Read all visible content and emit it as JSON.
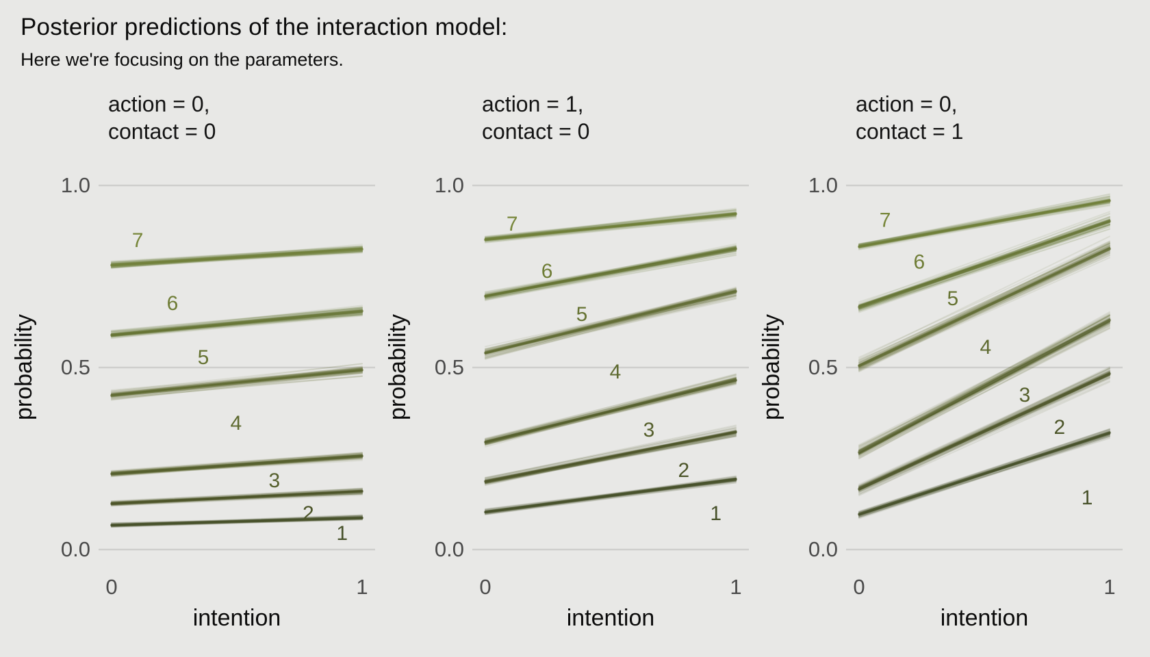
{
  "page": {
    "title": "Posterior predictions of the interaction model:",
    "subtitle": "Here we're focusing on the parameters."
  },
  "chart_data": {
    "type": "line",
    "style": "posterior spaghetti of cumulative probabilities (50 draws per line)",
    "xlabel": "intention",
    "ylabel": "probability",
    "xlim": [
      0,
      1
    ],
    "ylim": [
      0,
      1
    ],
    "xticks": [
      {
        "value": 0,
        "label": "0"
      },
      {
        "value": 1,
        "label": "1"
      }
    ],
    "yticks": [
      {
        "value": 0.0,
        "label": "0.0"
      },
      {
        "value": 0.5,
        "label": "0.5"
      },
      {
        "value": 1.0,
        "label": "1.0"
      }
    ],
    "grid": "horizontal major gridlines only",
    "legend": "none (lines annotated 1-7 in panel)",
    "colors": {
      "background": "#e8e8e6",
      "gridline": "#cfcfcd",
      "tick_text": "#4a4a4a",
      "text": "#0c0c0c",
      "level_ramp": [
        "#47512a",
        "#4c5529",
        "#555f2c",
        "#5e6a30",
        "#667333",
        "#6f7d36",
        "#78873b"
      ]
    },
    "facets": [
      {
        "strip": [
          "action = 0,",
          "contact = 0"
        ],
        "series": [
          {
            "name": "cumulative-line-1",
            "level": 1,
            "x": [
              0,
              1
            ],
            "y": [
              0.067,
              0.087
            ],
            "spread": 0.004
          },
          {
            "name": "cumulative-line-2",
            "level": 2,
            "x": [
              0,
              1
            ],
            "y": [
              0.126,
              0.16
            ],
            "spread": 0.005
          },
          {
            "name": "cumulative-line-3",
            "level": 3,
            "x": [
              0,
              1
            ],
            "y": [
              0.208,
              0.257
            ],
            "spread": 0.006
          },
          {
            "name": "cumulative-line-4",
            "level": 4,
            "x": [
              0,
              1
            ],
            "y": [
              0.423,
              0.493
            ],
            "spread": 0.009
          },
          {
            "name": "cumulative-line-5",
            "level": 5,
            "x": [
              0,
              1
            ],
            "y": [
              0.589,
              0.655
            ],
            "spread": 0.009
          },
          {
            "name": "cumulative-line-6",
            "level": 6,
            "x": [
              0,
              1
            ],
            "y": [
              0.781,
              0.825
            ],
            "spread": 0.008
          }
        ],
        "level_labels": [
          {
            "text": "1",
            "x": 0.92,
            "y": 0.045
          },
          {
            "text": "2",
            "x": 0.785,
            "y": 0.1
          },
          {
            "text": "3",
            "x": 0.65,
            "y": 0.19
          },
          {
            "text": "4",
            "x": 0.497,
            "y": 0.348
          },
          {
            "text": "5",
            "x": 0.366,
            "y": 0.528
          },
          {
            "text": "6",
            "x": 0.243,
            "y": 0.677
          },
          {
            "text": "7",
            "x": 0.104,
            "y": 0.85
          }
        ]
      },
      {
        "strip": [
          "action = 1,",
          "contact = 0"
        ],
        "series": [
          {
            "name": "cumulative-line-1",
            "level": 1,
            "x": [
              0,
              1
            ],
            "y": [
              0.103,
              0.193
            ],
            "spread": 0.005
          },
          {
            "name": "cumulative-line-2",
            "level": 2,
            "x": [
              0,
              1
            ],
            "y": [
              0.187,
              0.323
            ],
            "spread": 0.007
          },
          {
            "name": "cumulative-line-3",
            "level": 3,
            "x": [
              0,
              1
            ],
            "y": [
              0.295,
              0.465
            ],
            "spread": 0.009
          },
          {
            "name": "cumulative-line-4",
            "level": 4,
            "x": [
              0,
              1
            ],
            "y": [
              0.54,
              0.709
            ],
            "spread": 0.01
          },
          {
            "name": "cumulative-line-5",
            "level": 5,
            "x": [
              0,
              1
            ],
            "y": [
              0.696,
              0.826
            ],
            "spread": 0.009
          },
          {
            "name": "cumulative-line-6",
            "level": 6,
            "x": [
              0,
              1
            ],
            "y": [
              0.851,
              0.922
            ],
            "spread": 0.007
          }
        ],
        "level_labels": [
          {
            "text": "1",
            "x": 0.92,
            "y": 0.1
          },
          {
            "text": "2",
            "x": 0.792,
            "y": 0.218
          },
          {
            "text": "3",
            "x": 0.653,
            "y": 0.329
          },
          {
            "text": "4",
            "x": 0.519,
            "y": 0.489
          },
          {
            "text": "5",
            "x": 0.385,
            "y": 0.647
          },
          {
            "text": "6",
            "x": 0.246,
            "y": 0.765
          },
          {
            "text": "7",
            "x": 0.107,
            "y": 0.895
          }
        ]
      },
      {
        "strip": [
          "action = 0,",
          "contact = 1"
        ],
        "series": [
          {
            "name": "cumulative-line-1",
            "level": 1,
            "x": [
              0,
              1
            ],
            "y": [
              0.097,
              0.321
            ],
            "spread": 0.007
          },
          {
            "name": "cumulative-line-2",
            "level": 2,
            "x": [
              0,
              1
            ],
            "y": [
              0.166,
              0.483
            ],
            "spread": 0.01
          },
          {
            "name": "cumulative-line-3",
            "level": 3,
            "x": [
              0,
              1
            ],
            "y": [
              0.267,
              0.63
            ],
            "spread": 0.013
          },
          {
            "name": "cumulative-line-4",
            "level": 4,
            "x": [
              0,
              1
            ],
            "y": [
              0.505,
              0.826
            ],
            "spread": 0.013
          },
          {
            "name": "cumulative-line-5",
            "level": 5,
            "x": [
              0,
              1
            ],
            "y": [
              0.666,
              0.902
            ],
            "spread": 0.011
          },
          {
            "name": "cumulative-line-6",
            "level": 6,
            "x": [
              0,
              1
            ],
            "y": [
              0.832,
              0.958
            ],
            "spread": 0.008
          }
        ],
        "level_labels": [
          {
            "text": "1",
            "x": 0.91,
            "y": 0.143
          },
          {
            "text": "2",
            "x": 0.8,
            "y": 0.336
          },
          {
            "text": "3",
            "x": 0.661,
            "y": 0.425
          },
          {
            "text": "4",
            "x": 0.505,
            "y": 0.556
          },
          {
            "text": "5",
            "x": 0.374,
            "y": 0.69
          },
          {
            "text": "6",
            "x": 0.24,
            "y": 0.79
          },
          {
            "text": "7",
            "x": 0.104,
            "y": 0.905
          }
        ]
      }
    ]
  }
}
